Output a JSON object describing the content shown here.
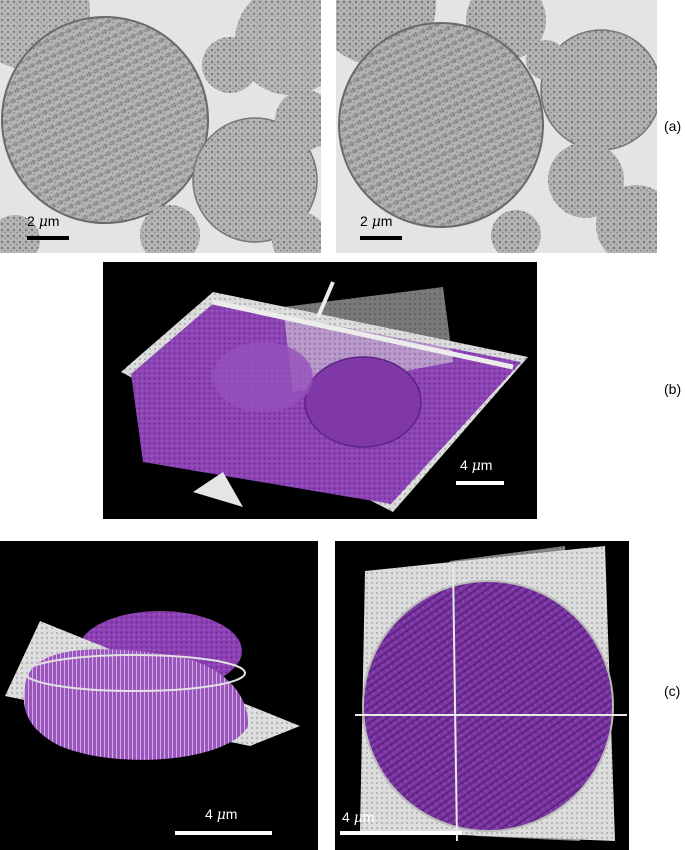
{
  "figure": {
    "row_a": {
      "tag": "(a)",
      "left_scale": {
        "number": "2",
        "unit_greek": "μ",
        "unit_suffix": "m"
      },
      "right_scale": {
        "number": "2",
        "unit_greek": "μ",
        "unit_suffix": "m"
      }
    },
    "row_b": {
      "tag": "(b)",
      "scale": {
        "number": "4",
        "unit_greek": "μ",
        "unit_suffix": "m"
      }
    },
    "row_c": {
      "tag": "(c)",
      "left_scale": {
        "number": "4",
        "unit_greek": "μ",
        "unit_suffix": "m"
      },
      "right_scale": {
        "number": "4",
        "unit_greek": "μ",
        "unit_suffix": "m"
      }
    }
  },
  "colors": {
    "tem_background": "#e6e6e6",
    "tem_particle": "#9c9c9c",
    "render_background": "#000000",
    "volume_purple": "#8a3fb0"
  }
}
